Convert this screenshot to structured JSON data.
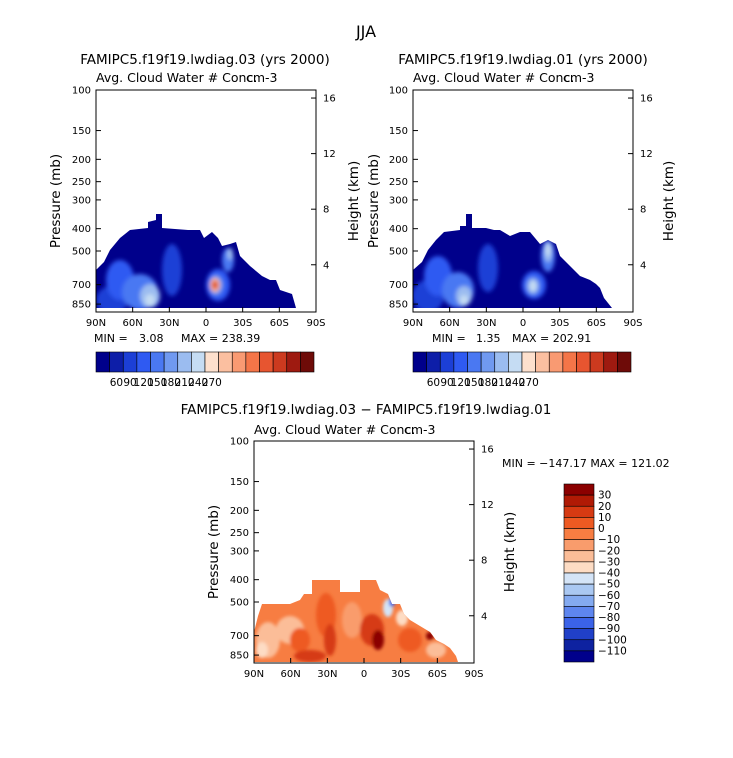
{
  "figure": {
    "season_title": "JJA"
  },
  "chart_data": [
    {
      "type": "heatmap",
      "panel": "top-left",
      "title": "FAMIPC5.f19f19.lwdiag.03 (yrs 2000)",
      "subtitle": "Avg. Cloud Water # Conc.",
      "corner_label": "cm-3",
      "xlabel": "",
      "ylabel": "Pressure (mb)",
      "ylabel_right": "Height (km)",
      "x_ticks": [
        "90N",
        "60N",
        "30N",
        "0",
        "30S",
        "60S",
        "90S"
      ],
      "y_ticks": [
        "100",
        "150",
        "200",
        "250",
        "300",
        "400",
        "500",
        "700",
        "850"
      ],
      "y_ticks_right": [
        "16",
        "12",
        "8",
        "4"
      ],
      "min_label": "MIN =",
      "min_value": "3.08",
      "max_label": "MAX = 238.39",
      "colorbar_labels": [
        "60",
        "90",
        "120",
        "150",
        "180",
        "210",
        "240",
        "270"
      ],
      "hotspot": {
        "lat": -8,
        "p": 700,
        "value": 238.39
      }
    },
    {
      "type": "heatmap",
      "panel": "top-right",
      "title": "FAMIPC5.f19f19.lwdiag.01 (yrs 2000)",
      "subtitle": "Avg. Cloud Water # Conc.",
      "corner_label": "cm-3",
      "xlabel": "",
      "ylabel": "Pressure (mb)",
      "ylabel_right": "Height (km)",
      "x_ticks": [
        "90N",
        "60N",
        "30N",
        "0",
        "30S",
        "60S",
        "90S"
      ],
      "y_ticks": [
        "100",
        "150",
        "200",
        "250",
        "300",
        "400",
        "500",
        "700",
        "850"
      ],
      "y_ticks_right": [
        "16",
        "12",
        "8",
        "4"
      ],
      "min_label": "MIN =",
      "min_value": "1.35",
      "max_label": "MAX = 202.91",
      "colorbar_labels": [
        "60",
        "90",
        "120",
        "150",
        "180",
        "210",
        "240",
        "270"
      ],
      "hotspot": {
        "lat": -10,
        "p": 720,
        "value": 202.91
      }
    },
    {
      "type": "heatmap",
      "panel": "bottom",
      "title": "FAMIPC5.f19f19.lwdiag.03 − FAMIPC5.f19f19.lwdiag.01",
      "subtitle": "Avg. Cloud Water # Conc.",
      "corner_label": "cm-3",
      "xlabel": "",
      "ylabel": "Pressure (mb)",
      "ylabel_right": "Height (km)",
      "x_ticks": [
        "90N",
        "60N",
        "30N",
        "0",
        "30S",
        "60S",
        "90S"
      ],
      "y_ticks": [
        "100",
        "150",
        "200",
        "250",
        "300",
        "400",
        "500",
        "700",
        "850"
      ],
      "y_ticks_right": [
        "16",
        "12",
        "8",
        "4"
      ],
      "stat_label": "MIN = −147.17    MAX = 121.02",
      "colorbar_labels": [
        "30",
        "20",
        "10",
        "0",
        "−10",
        "−20",
        "−30",
        "−40",
        "−50",
        "−60",
        "−70",
        "−80",
        "−90",
        "−100",
        "−110"
      ]
    }
  ],
  "colors": {
    "seq_palette": [
      "#00008b",
      "#0d1ea8",
      "#1c3fd6",
      "#2f5af2",
      "#4a78f2",
      "#7099f0",
      "#9bbcf0",
      "#c5dcf3",
      "#fde0cd",
      "#fbbfa0",
      "#f99a72",
      "#f47548",
      "#e75530",
      "#cc3a1f",
      "#9e1a10",
      "#6e0b08"
    ],
    "diff_palette": [
      "#8b0000",
      "#b01a05",
      "#d63a12",
      "#ee5a22",
      "#f77d42",
      "#f99c6c",
      "#fbbd98",
      "#fddcc4",
      "#d4e4f7",
      "#aac8f2",
      "#84aaf0",
      "#5e86ef",
      "#3b63e8",
      "#2040c8",
      "#0e22a0",
      "#00008b"
    ]
  }
}
